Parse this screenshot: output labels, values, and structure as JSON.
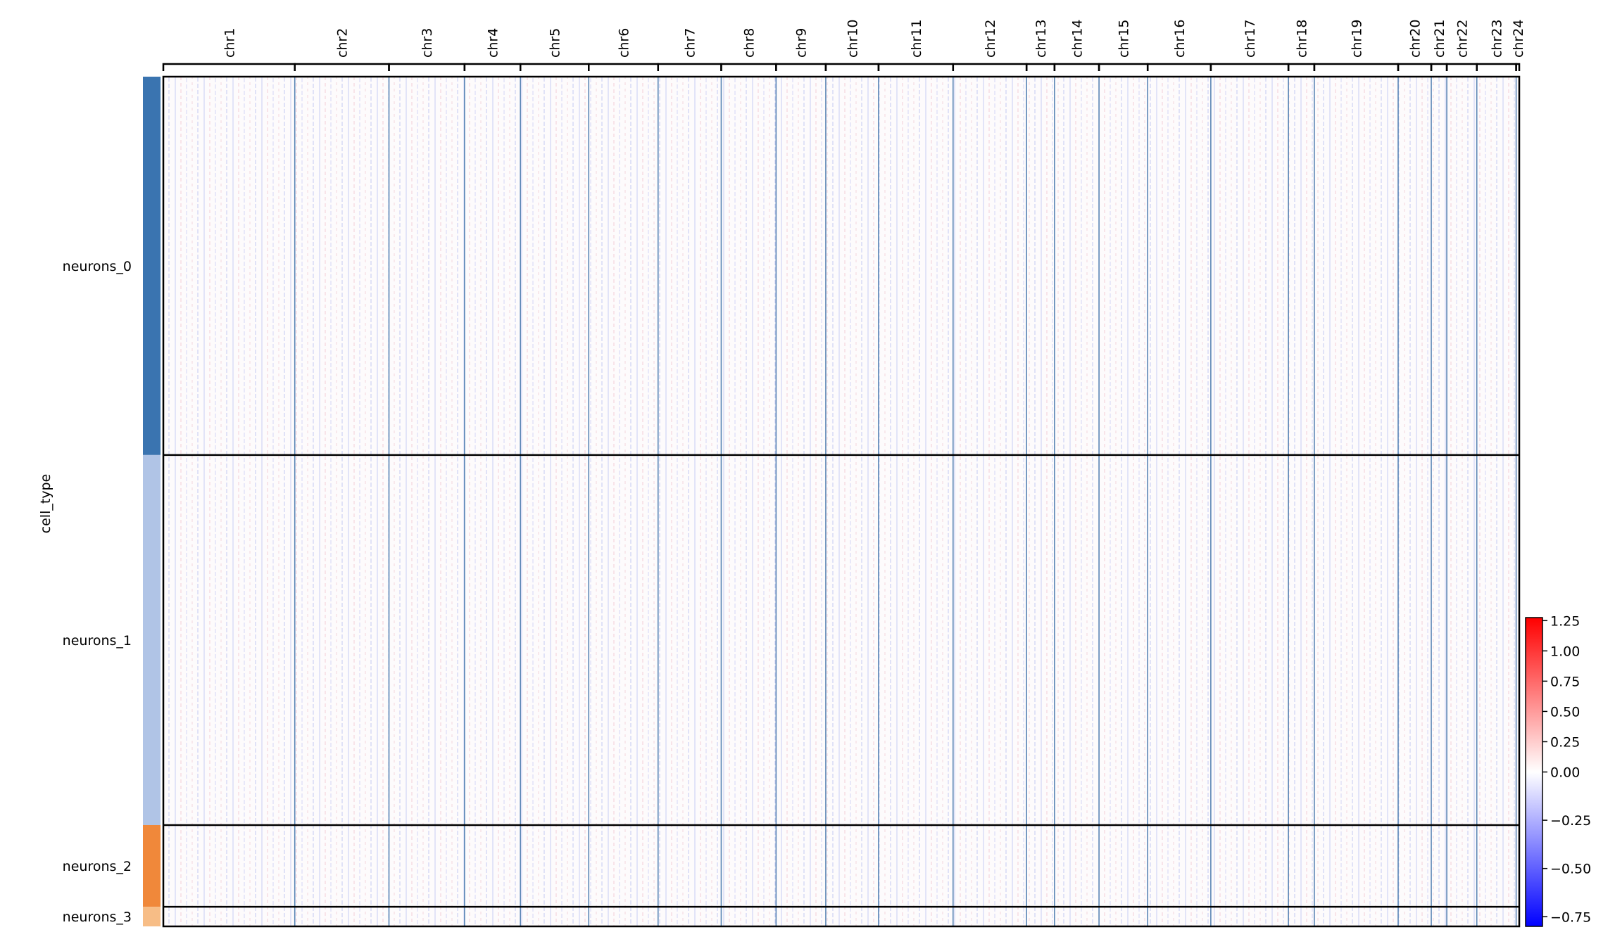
{
  "chart_data": {
    "type": "heatmap",
    "y_label": "cell_type",
    "xlim": [
      0,
      1310
    ],
    "chromosomes": [
      {
        "name": "chr1",
        "genes": 127
      },
      {
        "name": "chr2",
        "genes": 91
      },
      {
        "name": "chr3",
        "genes": 73
      },
      {
        "name": "chr4",
        "genes": 54
      },
      {
        "name": "chr5",
        "genes": 66
      },
      {
        "name": "chr6",
        "genes": 67
      },
      {
        "name": "chr7",
        "genes": 61
      },
      {
        "name": "chr8",
        "genes": 53
      },
      {
        "name": "chr9",
        "genes": 48
      },
      {
        "name": "chr10",
        "genes": 51
      },
      {
        "name": "chr11",
        "genes": 72
      },
      {
        "name": "chr12",
        "genes": 71
      },
      {
        "name": "chr13",
        "genes": 27
      },
      {
        "name": "chr14",
        "genes": 43
      },
      {
        "name": "chr15",
        "genes": 47
      },
      {
        "name": "chr16",
        "genes": 61
      },
      {
        "name": "chr17",
        "genes": 75
      },
      {
        "name": "chr18",
        "genes": 25
      },
      {
        "name": "chr19",
        "genes": 81
      },
      {
        "name": "chr20",
        "genes": 32
      },
      {
        "name": "chr21",
        "genes": 15
      },
      {
        "name": "chr22",
        "genes": 29
      },
      {
        "name": "chr23",
        "genes": 38
      },
      {
        "name": "chr24",
        "genes": 3
      }
    ],
    "ylim": [
      0,
      822
    ],
    "groups": [
      {
        "name": "neurons_0",
        "color": "#3a74b0",
        "cells": 366
      },
      {
        "name": "neurons_1",
        "color": "#b0c4e6",
        "cells": 358
      },
      {
        "name": "neurons_2",
        "color": "#f0883a",
        "cells": 79
      },
      {
        "name": "neurons_3",
        "color": "#f7bd86",
        "cells": 19
      }
    ],
    "colorbar": {
      "cmap": [
        "#0000ff",
        "#ffffff",
        "#ff0000"
      ],
      "clim": [
        -0.8,
        1.275
      ],
      "center": 0,
      "ticks": [
        1.25,
        {
          "value": 1,
          "label": "1.00"
        },
        0.75,
        {
          "value": 0.5,
          "label": "0.50"
        },
        0.25,
        {
          "value": 0,
          "label": "0.00"
        },
        {
          "value": -0.25,
          "label": "−0.25"
        },
        {
          "value": -0.5,
          "label": "−0.50"
        },
        {
          "value": -0.75,
          "label": "−0.75"
        }
      ]
    }
  }
}
